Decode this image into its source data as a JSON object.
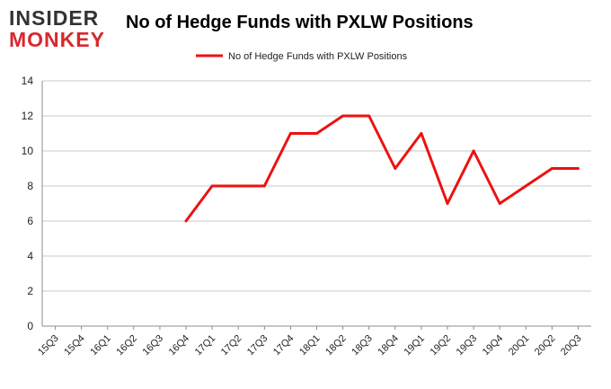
{
  "header": {
    "logo_top": "INSIDER",
    "logo_bottom": "MONKEY"
  },
  "chart_data": {
    "type": "line",
    "title": "No of Hedge Funds with PXLW Positions",
    "xlabel": "",
    "ylabel": "",
    "categories": [
      "15Q3",
      "15Q4",
      "16Q1",
      "16Q2",
      "16Q3",
      "16Q4",
      "17Q1",
      "17Q2",
      "17Q3",
      "17Q4",
      "18Q1",
      "18Q2",
      "18Q3",
      "18Q4",
      "19Q1",
      "19Q2",
      "19Q3",
      "19Q4",
      "20Q1",
      "20Q2",
      "20Q3"
    ],
    "series": [
      {
        "name": "No of Hedge Funds with PXLW Positions",
        "values": [
          null,
          null,
          null,
          null,
          null,
          6,
          8,
          8,
          8,
          11,
          11,
          12,
          12,
          9,
          11,
          7,
          10,
          7,
          8,
          9,
          9
        ],
        "color": "#ee1111"
      }
    ],
    "ylim": [
      0,
      14
    ],
    "yticks": [
      "0",
      "2",
      "4",
      "6",
      "8",
      "10",
      "12",
      "14"
    ],
    "grid": true,
    "legend": "top-center"
  }
}
